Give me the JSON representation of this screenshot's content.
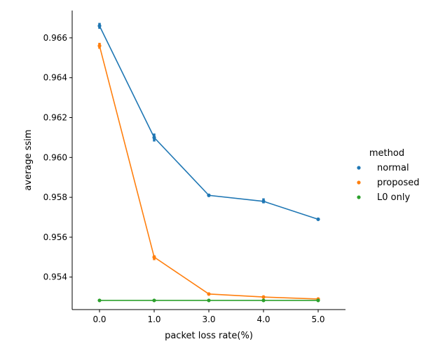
{
  "chart_data": {
    "type": "line",
    "title": "",
    "xlabel": "packet loss rate(%)",
    "ylabel": "average ssim",
    "x": [
      0.0,
      1.0,
      3.0,
      4.0,
      5.0
    ],
    "x_tick_labels": [
      "0.0",
      "1.0",
      "3.0",
      "4.0",
      "5.0"
    ],
    "categorical_x": true,
    "xlim": [
      -0.5,
      4.5
    ],
    "ylim": [
      0.95237,
      0.96737
    ],
    "y_ticks": [
      0.954,
      0.956,
      0.958,
      0.96,
      0.962,
      0.964,
      0.966
    ],
    "y_tick_labels": [
      "0.954",
      "0.956",
      "0.958",
      "0.960",
      "0.962",
      "0.964",
      "0.966"
    ],
    "legend": {
      "title": "method",
      "position": "right"
    },
    "grid": false,
    "series": [
      {
        "name": "normal",
        "color": "#1f77b4",
        "values": [
          0.9666,
          0.961,
          0.9581,
          0.9578,
          0.9569
        ],
        "err_low": [
          0.96645,
          0.9608,
          0.95805,
          0.9577,
          0.95685
        ],
        "err_high": [
          0.96675,
          0.9612,
          0.95815,
          0.95795,
          0.95695
        ]
      },
      {
        "name": "proposed",
        "color": "#ff7f0e",
        "values": [
          0.9656,
          0.955,
          0.95315,
          0.953,
          0.9529
        ],
        "err_low": [
          0.96545,
          0.95485,
          0.95315,
          0.953,
          0.9529
        ],
        "err_high": [
          0.96575,
          0.9551,
          0.95318,
          0.95302,
          0.95292
        ]
      },
      {
        "name": "L0 only",
        "color": "#2ca02c",
        "values": [
          0.95283,
          0.95283,
          0.95283,
          0.95283,
          0.95283
        ],
        "err_low": [
          0.95283,
          0.95283,
          0.95283,
          0.95283,
          0.95283
        ],
        "err_high": [
          0.95283,
          0.95283,
          0.95283,
          0.95283,
          0.95283
        ]
      }
    ]
  }
}
